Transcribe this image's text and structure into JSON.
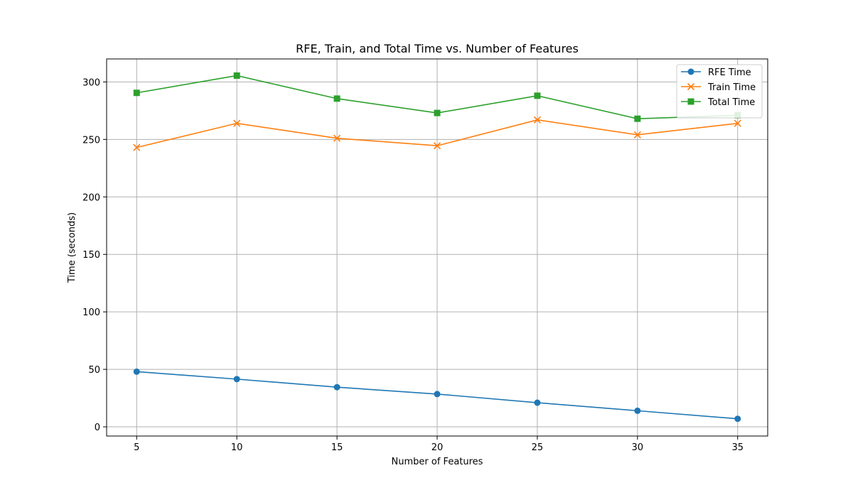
{
  "chart_data": {
    "type": "line",
    "title": "RFE, Train, and Total Time vs. Number of Features",
    "xlabel": "Number of Features",
    "ylabel": "Time (seconds)",
    "x": [
      5,
      10,
      15,
      20,
      25,
      30,
      35
    ],
    "xlim": [
      3.5,
      36.5
    ],
    "ylim": [
      -8,
      320
    ],
    "xticks": [
      5,
      10,
      15,
      20,
      25,
      30,
      35
    ],
    "yticks": [
      0,
      50,
      100,
      150,
      200,
      250,
      300
    ],
    "grid": true,
    "legend_position": "top-right",
    "series": [
      {
        "name": "RFE Time",
        "color": "#1f77b4",
        "marker": "circle",
        "values": [
          48,
          41.5,
          34.5,
          28.5,
          21,
          14,
          7
        ]
      },
      {
        "name": "Train Time",
        "color": "#ff7f0e",
        "marker": "x",
        "values": [
          243,
          264,
          251,
          244.5,
          267,
          254,
          264
        ]
      },
      {
        "name": "Total Time",
        "color": "#2ca02c",
        "marker": "square",
        "values": [
          290.5,
          305.5,
          285.5,
          273,
          288,
          268,
          271
        ]
      }
    ]
  }
}
